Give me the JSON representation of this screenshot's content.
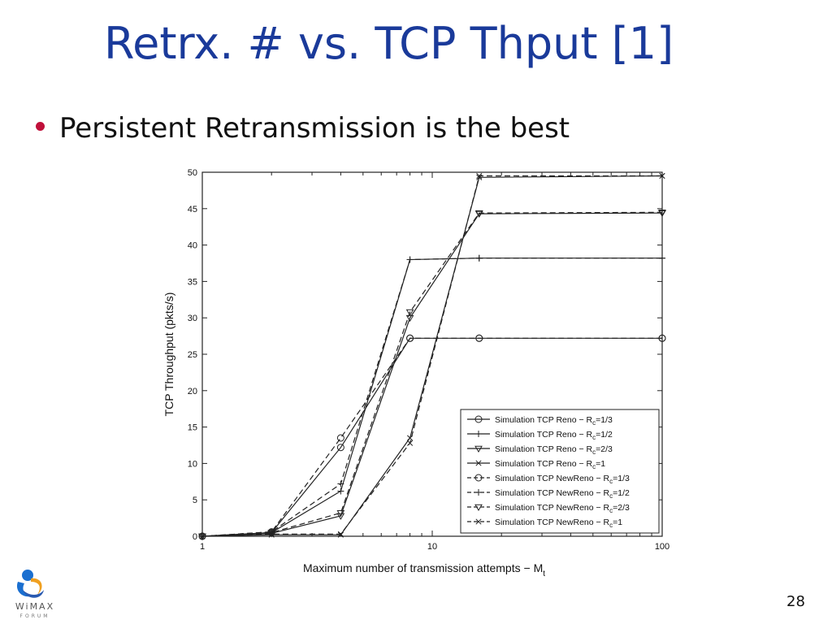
{
  "slide": {
    "title": "Retrx. # vs. TCP Thput [1]",
    "bullet": "Persistent Retransmission is the best",
    "page_number": "28",
    "logo_text": "WiMAX",
    "logo_subtext": "FORUM",
    "bullet_color": "#c0103a",
    "title_color": "#1a3a9a"
  },
  "chart_data": {
    "type": "line",
    "xlabel": "Maximum number of transmission attempts − M",
    "xlabel_sub": "t",
    "ylabel": "TCP Throughput (pkts/s)",
    "xscale": "log",
    "xlim": [
      1,
      100
    ],
    "ylim": [
      0,
      50
    ],
    "xticks": [
      1,
      10,
      100
    ],
    "xtick_labels": [
      "1",
      "10",
      "100"
    ],
    "yticks": [
      0,
      5,
      10,
      15,
      20,
      25,
      30,
      35,
      40,
      45,
      50
    ],
    "ytick_labels": [
      "0",
      "5",
      "10",
      "15",
      "20",
      "25",
      "30",
      "35",
      "40",
      "45",
      "50"
    ],
    "grid": false,
    "legend_position": "bottom-right",
    "x": [
      1,
      2,
      4,
      8,
      16,
      100
    ],
    "series": [
      {
        "name": "Simulation TCP Reno − R",
        "sub": "c",
        "suffix": "=1/3",
        "marker": "circle",
        "dash": "solid",
        "values": [
          0,
          0.5,
          12.2,
          27.2,
          27.2,
          27.2
        ]
      },
      {
        "name": "Simulation TCP Reno − R",
        "sub": "c",
        "suffix": "=1/2",
        "marker": "plus",
        "dash": "solid",
        "values": [
          0,
          0.5,
          6.2,
          38.0,
          38.2,
          38.2
        ]
      },
      {
        "name": "Simulation TCP Reno − R",
        "sub": "c",
        "suffix": "=2/3",
        "marker": "triangle",
        "dash": "solid",
        "values": [
          0,
          0.4,
          2.8,
          30.0,
          44.3,
          44.4
        ]
      },
      {
        "name": "Simulation TCP Reno − R",
        "sub": "c",
        "suffix": "=1",
        "marker": "x",
        "dash": "solid",
        "values": [
          0,
          0.2,
          0.2,
          13.5,
          49.3,
          49.5
        ]
      },
      {
        "name": "Simulation TCP NewReno − R",
        "sub": "c",
        "suffix": "=1/3",
        "marker": "circle",
        "dash": "dashed",
        "values": [
          0,
          0.6,
          13.5,
          27.2,
          27.2,
          27.2
        ]
      },
      {
        "name": "Simulation TCP NewReno − R",
        "sub": "c",
        "suffix": "=1/2",
        "marker": "plus",
        "dash": "dashed",
        "values": [
          0,
          0.6,
          7.2,
          38.0,
          38.2,
          38.2
        ]
      },
      {
        "name": "Simulation TCP NewReno − R",
        "sub": "c",
        "suffix": "=2/3",
        "marker": "triangle",
        "dash": "dashed",
        "values": [
          0,
          0.5,
          3.2,
          30.8,
          44.4,
          44.5
        ]
      },
      {
        "name": "Simulation TCP NewReno − R",
        "sub": "c",
        "suffix": "=1",
        "marker": "x",
        "dash": "dashed",
        "values": [
          0,
          0.3,
          0.3,
          12.8,
          49.5,
          49.5
        ]
      }
    ]
  }
}
